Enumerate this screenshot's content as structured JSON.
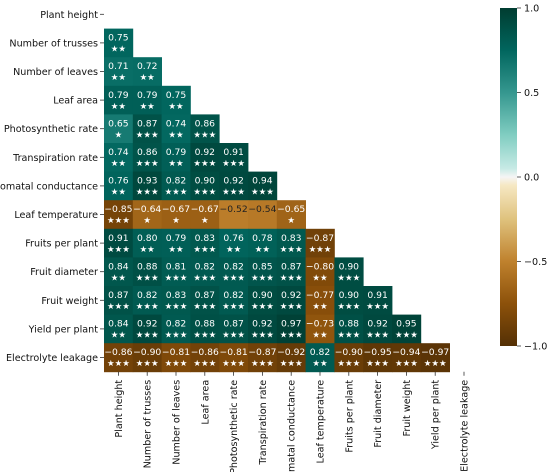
{
  "chart_data": {
    "type": "heatmap",
    "variables": [
      "Plant height",
      "Number of trusses",
      "Number of leaves",
      "Leaf area",
      "Photosynthetic rate",
      "Transpiration rate",
      "Stomatal conductance",
      "Leaf temperature",
      "Fruits per plant",
      "Fruit diameter",
      "Fruit weight",
      "Yield per plant",
      "Electrolyte leakage"
    ],
    "lower_triangle": [
      [],
      [
        {
          "v": "0.75",
          "s": "★★"
        }
      ],
      [
        {
          "v": "0.71",
          "s": "★★"
        },
        {
          "v": "0.72",
          "s": "★★"
        }
      ],
      [
        {
          "v": "0.79",
          "s": "★★"
        },
        {
          "v": "0.79",
          "s": "★★"
        },
        {
          "v": "0.75",
          "s": "★★"
        }
      ],
      [
        {
          "v": "0.65",
          "s": "★"
        },
        {
          "v": "0.87",
          "s": "★★★"
        },
        {
          "v": "0.74",
          "s": "★★"
        },
        {
          "v": "0.86",
          "s": "★★★"
        }
      ],
      [
        {
          "v": "0.74",
          "s": "★★"
        },
        {
          "v": "0.86",
          "s": "★★★"
        },
        {
          "v": "0.79",
          "s": "★★"
        },
        {
          "v": "0.92",
          "s": "★★★"
        },
        {
          "v": "0.91",
          "s": "★★★"
        }
      ],
      [
        {
          "v": "0.76",
          "s": "★★"
        },
        {
          "v": "0.93",
          "s": "★★★"
        },
        {
          "v": "0.82",
          "s": "★★★"
        },
        {
          "v": "0.90",
          "s": "★★★"
        },
        {
          "v": "0.92",
          "s": "★★★"
        },
        {
          "v": "0.94",
          "s": "★★★"
        }
      ],
      [
        {
          "v": "−0.85",
          "s": "★★★"
        },
        {
          "v": "−0.64",
          "s": "★"
        },
        {
          "v": "−0.67",
          "s": "★"
        },
        {
          "v": "−0.67",
          "s": "★"
        },
        {
          "v": "−0.52",
          "s": ""
        },
        {
          "v": "−0.54",
          "s": ""
        },
        {
          "v": "−0.65",
          "s": "★"
        }
      ],
      [
        {
          "v": "0.91",
          "s": "★★★"
        },
        {
          "v": "0.80",
          "s": "★★"
        },
        {
          "v": "0.79",
          "s": "★★"
        },
        {
          "v": "0.83",
          "s": "★★★"
        },
        {
          "v": "0.76",
          "s": "★★"
        },
        {
          "v": "0.78",
          "s": "★★"
        },
        {
          "v": "0.83",
          "s": "★★★"
        },
        {
          "v": "−0.87",
          "s": "★★★"
        }
      ],
      [
        {
          "v": "0.84",
          "s": "★★"
        },
        {
          "v": "0.88",
          "s": "★★★"
        },
        {
          "v": "0.81",
          "s": "★★★"
        },
        {
          "v": "0.82",
          "s": "★★★"
        },
        {
          "v": "0.82",
          "s": "★★★"
        },
        {
          "v": "0.85",
          "s": "★★★"
        },
        {
          "v": "0.87",
          "s": "★★★"
        },
        {
          "v": "−0.80",
          "s": "★★"
        },
        {
          "v": "0.90",
          "s": "★★★"
        }
      ],
      [
        {
          "v": "0.87",
          "s": "★★★"
        },
        {
          "v": "0.82",
          "s": "★★★"
        },
        {
          "v": "0.83",
          "s": "★★★"
        },
        {
          "v": "0.87",
          "s": "★★★"
        },
        {
          "v": "0.82",
          "s": "★★★"
        },
        {
          "v": "0.90",
          "s": "★★★"
        },
        {
          "v": "0.92",
          "s": "★★★"
        },
        {
          "v": "−0.77",
          "s": "★★"
        },
        {
          "v": "0.90",
          "s": "★★★"
        },
        {
          "v": "0.91",
          "s": "★★★"
        }
      ],
      [
        {
          "v": "0.84",
          "s": "★★"
        },
        {
          "v": "0.92",
          "s": "★★★"
        },
        {
          "v": "0.82",
          "s": "★★★"
        },
        {
          "v": "0.88",
          "s": "★★★"
        },
        {
          "v": "0.87",
          "s": "★★★"
        },
        {
          "v": "0.92",
          "s": "★★★"
        },
        {
          "v": "0.97",
          "s": "★★★"
        },
        {
          "v": "−0.73",
          "s": "★★"
        },
        {
          "v": "0.88",
          "s": "★★★"
        },
        {
          "v": "0.92",
          "s": "★★★"
        },
        {
          "v": "0.95",
          "s": "★★★"
        }
      ],
      [
        {
          "v": "−0.86",
          "s": "★★★"
        },
        {
          "v": "−0.90",
          "s": "★★★"
        },
        {
          "v": "−0.81",
          "s": "★★★"
        },
        {
          "v": "−0.86",
          "s": "★★★"
        },
        {
          "v": "−0.81",
          "s": "★★★"
        },
        {
          "v": "−0.87",
          "s": "★★★"
        },
        {
          "v": "−0.92",
          "s": "★★★"
        },
        {
          "v": "0.82",
          "s": "★★"
        },
        {
          "v": "−0.90",
          "s": "★★★"
        },
        {
          "v": "−0.95",
          "s": "★★★"
        },
        {
          "v": "−0.94",
          "s": "★★★"
        },
        {
          "v": "−0.97",
          "s": "★★★"
        }
      ]
    ],
    "colorbar": {
      "min": -1.0,
      "max": 1.0,
      "ticks": [
        {
          "value": 1.0,
          "label": "1.0"
        },
        {
          "value": 0.5,
          "label": "0.5"
        },
        {
          "value": 0.0,
          "label": "0.0"
        },
        {
          "value": -0.5,
          "label": "−0.5"
        },
        {
          "value": -1.0,
          "label": "−1.0"
        }
      ],
      "colormap": "BrBG",
      "stops": [
        {
          "v": -1.0,
          "c": "#543005"
        },
        {
          "v": -0.75,
          "c": "#8c510a"
        },
        {
          "v": -0.5,
          "c": "#bf812d"
        },
        {
          "v": -0.25,
          "c": "#dfc27d"
        },
        {
          "v": -0.05,
          "c": "#f6e8c3"
        },
        {
          "v": 0.0,
          "c": "#f5f5f5"
        },
        {
          "v": 0.05,
          "c": "#c7eae5"
        },
        {
          "v": 0.25,
          "c": "#80cdc1"
        },
        {
          "v": 0.5,
          "c": "#35978f"
        },
        {
          "v": 0.75,
          "c": "#01665e"
        },
        {
          "v": 1.0,
          "c": "#003c30"
        }
      ]
    },
    "legend_placement": "right"
  }
}
